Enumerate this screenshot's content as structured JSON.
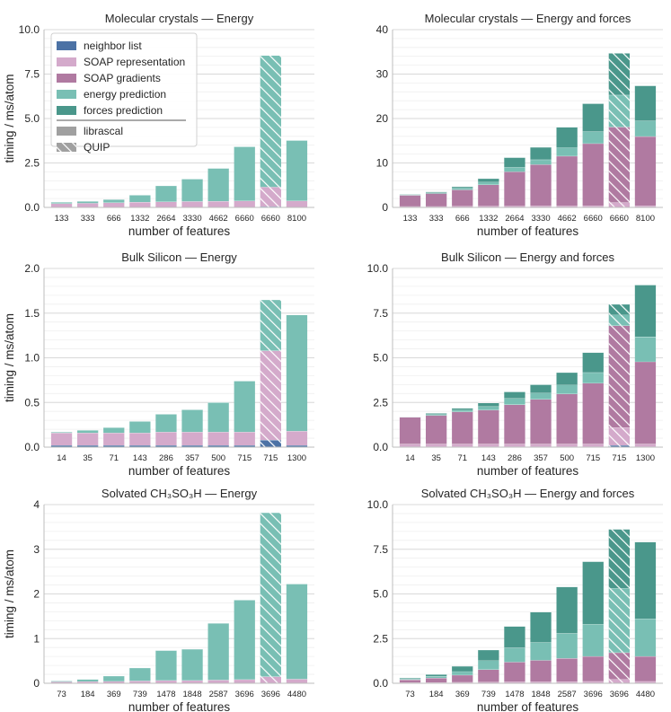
{
  "colors": {
    "neighbor": "#4c72a5",
    "soap_rep": "#d4aacb",
    "soap_grad": "#b07aa1",
    "energy": "#79bfb4",
    "forces": "#4a978b",
    "grid": "#e6e6e6",
    "legend_grey": "#a0a0a0"
  },
  "legend": {
    "items": [
      {
        "label": "neighbor list",
        "color": "#4c72a5"
      },
      {
        "label": "SOAP representation",
        "color": "#d4aacb"
      },
      {
        "label": "SOAP gradients",
        "color": "#b07aa1"
      },
      {
        "label": "energy prediction",
        "color": "#79bfb4"
      },
      {
        "label": "forces prediction",
        "color": "#4a978b"
      }
    ],
    "impl": [
      {
        "label": "librascal",
        "hatched": false
      },
      {
        "label": "QUIP",
        "hatched": true
      }
    ]
  },
  "chart_data": [
    {
      "type": "bar",
      "stacked": true,
      "title": "Molecular crystals — Energy",
      "xlabel": "number of features",
      "ylabel": "timing / ms/atom",
      "ylim": [
        0,
        10
      ],
      "yticks": [
        "0.0",
        "2.5",
        "5.0",
        "7.5",
        "10.0"
      ],
      "yticks_values": [
        0,
        2.5,
        5,
        7.5,
        10
      ],
      "categories": [
        "133",
        "333",
        "666",
        "1332",
        "2664",
        "3330",
        "4662",
        "6660",
        "6660",
        "8100"
      ],
      "hatched": [
        false,
        false,
        false,
        false,
        false,
        false,
        false,
        false,
        true,
        false
      ],
      "series": [
        {
          "name": "neighbor list",
          "values": [
            0.02,
            0.02,
            0.02,
            0.02,
            0.02,
            0.02,
            0.02,
            0.02,
            0.05,
            0.02
          ]
        },
        {
          "name": "SOAP representation",
          "values": [
            0.2,
            0.22,
            0.25,
            0.28,
            0.3,
            0.32,
            0.33,
            0.35,
            1.1,
            0.35
          ]
        },
        {
          "name": "SOAP gradients",
          "values": [
            0,
            0,
            0,
            0,
            0,
            0,
            0,
            0,
            0,
            0
          ]
        },
        {
          "name": "energy prediction",
          "values": [
            0.08,
            0.11,
            0.18,
            0.4,
            0.9,
            1.26,
            1.85,
            3.05,
            7.4,
            3.4
          ]
        },
        {
          "name": "forces prediction",
          "values": [
            0,
            0,
            0,
            0,
            0,
            0,
            0,
            0,
            0,
            0
          ]
        }
      ]
    },
    {
      "type": "bar",
      "stacked": true,
      "title": "Molecular crystals — Energy and forces",
      "xlabel": "number of features",
      "ylabel": "",
      "ylim": [
        0,
        40
      ],
      "yticks": [
        "0",
        "10",
        "20",
        "30",
        "40"
      ],
      "yticks_values": [
        0,
        10,
        20,
        30,
        40
      ],
      "categories": [
        "133",
        "333",
        "666",
        "1332",
        "2664",
        "3330",
        "4662",
        "6660",
        "6660",
        "8100"
      ],
      "hatched": [
        false,
        false,
        false,
        false,
        false,
        false,
        false,
        false,
        true,
        false
      ],
      "series": [
        {
          "name": "neighbor list",
          "values": [
            0.03,
            0.03,
            0.03,
            0.03,
            0.03,
            0.03,
            0.03,
            0.03,
            0.1,
            0.03
          ]
        },
        {
          "name": "SOAP representation",
          "values": [
            0.2,
            0.2,
            0.25,
            0.28,
            0.3,
            0.32,
            0.33,
            0.35,
            1.0,
            0.35
          ]
        },
        {
          "name": "SOAP gradients",
          "values": [
            2.5,
            2.9,
            3.7,
            4.8,
            7.7,
            9.3,
            11.2,
            14.0,
            17.0,
            15.6
          ]
        },
        {
          "name": "energy prediction",
          "values": [
            0.1,
            0.2,
            0.4,
            0.6,
            1.0,
            1.1,
            1.9,
            2.7,
            7.2,
            3.5
          ]
        },
        {
          "name": "forces prediction",
          "values": [
            0.1,
            0.2,
            0.3,
            0.8,
            2.2,
            2.8,
            4.6,
            6.3,
            9.4,
            7.9
          ]
        }
      ]
    },
    {
      "type": "bar",
      "stacked": true,
      "title": "Bulk Silicon — Energy",
      "xlabel": "number of features",
      "ylabel": "timing / ms/atom",
      "ylim": [
        0,
        2
      ],
      "yticks": [
        "0.0",
        "0.5",
        "1.0",
        "1.5",
        "2.0"
      ],
      "yticks_values": [
        0,
        0.5,
        1,
        1.5,
        2
      ],
      "categories": [
        "14",
        "35",
        "71",
        "143",
        "286",
        "357",
        "500",
        "715",
        "715",
        "1300"
      ],
      "hatched": [
        false,
        false,
        false,
        false,
        false,
        false,
        false,
        false,
        true,
        false
      ],
      "series": [
        {
          "name": "neighbor list",
          "values": [
            0.02,
            0.02,
            0.02,
            0.02,
            0.02,
            0.02,
            0.02,
            0.02,
            0.08,
            0.02
          ]
        },
        {
          "name": "SOAP representation",
          "values": [
            0.14,
            0.14,
            0.14,
            0.14,
            0.15,
            0.15,
            0.15,
            0.15,
            1.0,
            0.16
          ]
        },
        {
          "name": "SOAP gradients",
          "values": [
            0,
            0,
            0,
            0,
            0,
            0,
            0,
            0,
            0,
            0
          ]
        },
        {
          "name": "energy prediction",
          "values": [
            0.01,
            0.03,
            0.06,
            0.13,
            0.2,
            0.25,
            0.33,
            0.57,
            0.57,
            1.3
          ]
        },
        {
          "name": "forces prediction",
          "values": [
            0,
            0,
            0,
            0,
            0,
            0,
            0,
            0,
            0,
            0
          ]
        }
      ]
    },
    {
      "type": "bar",
      "stacked": true,
      "title": "Bulk Silicon — Energy and forces",
      "xlabel": "number of features",
      "ylabel": "",
      "ylim": [
        0,
        10
      ],
      "yticks": [
        "0.0",
        "2.5",
        "5.0",
        "7.5",
        "10.0"
      ],
      "yticks_values": [
        0,
        2.5,
        5,
        7.5,
        10
      ],
      "categories": [
        "14",
        "35",
        "71",
        "143",
        "286",
        "357",
        "500",
        "715",
        "715",
        "1300"
      ],
      "hatched": [
        false,
        false,
        false,
        false,
        false,
        false,
        false,
        false,
        true,
        false
      ],
      "series": [
        {
          "name": "neighbor list",
          "values": [
            0.03,
            0.03,
            0.03,
            0.03,
            0.03,
            0.03,
            0.03,
            0.03,
            0.1,
            0.03
          ]
        },
        {
          "name": "SOAP representation",
          "values": [
            0.15,
            0.15,
            0.15,
            0.15,
            0.15,
            0.15,
            0.15,
            0.15,
            1.0,
            0.15
          ]
        },
        {
          "name": "SOAP gradients",
          "values": [
            1.5,
            1.6,
            1.8,
            1.9,
            2.2,
            2.5,
            2.8,
            3.4,
            5.7,
            4.6
          ]
        },
        {
          "name": "energy prediction",
          "values": [
            0.02,
            0.06,
            0.1,
            0.2,
            0.35,
            0.35,
            0.5,
            0.6,
            0.6,
            1.4
          ]
        },
        {
          "name": "forces prediction",
          "values": [
            0,
            0.06,
            0.1,
            0.2,
            0.37,
            0.47,
            0.7,
            1.12,
            0.6,
            2.9
          ]
        }
      ]
    },
    {
      "type": "bar",
      "stacked": true,
      "title": "Solvated CH₃SO₃H — Energy",
      "xlabel": "number of features",
      "ylabel": "timing / ms/atom",
      "ylim": [
        0,
        4
      ],
      "yticks": [
        "0",
        "1",
        "2",
        "3",
        "4"
      ],
      "yticks_values": [
        0,
        1,
        2,
        3,
        4
      ],
      "categories": [
        "73",
        "184",
        "369",
        "739",
        "1478",
        "1848",
        "2587",
        "3696",
        "3696",
        "4480"
      ],
      "hatched": [
        false,
        false,
        false,
        false,
        false,
        false,
        false,
        false,
        true,
        false
      ],
      "series": [
        {
          "name": "neighbor list",
          "values": [
            0.005,
            0.005,
            0.005,
            0.005,
            0.005,
            0.005,
            0.005,
            0.005,
            0.01,
            0.005
          ]
        },
        {
          "name": "SOAP representation",
          "values": [
            0.03,
            0.035,
            0.04,
            0.05,
            0.06,
            0.06,
            0.07,
            0.08,
            0.14,
            0.09
          ]
        },
        {
          "name": "SOAP gradients",
          "values": [
            0,
            0,
            0,
            0,
            0,
            0,
            0,
            0,
            0,
            0
          ]
        },
        {
          "name": "energy prediction",
          "values": [
            0.02,
            0.05,
            0.12,
            0.29,
            0.67,
            0.7,
            1.27,
            1.78,
            3.67,
            2.13
          ]
        },
        {
          "name": "forces prediction",
          "values": [
            0,
            0,
            0,
            0,
            0,
            0,
            0,
            0,
            0,
            0
          ]
        }
      ]
    },
    {
      "type": "bar",
      "stacked": true,
      "title": "Solvated CH₃SO₃H — Energy and forces",
      "xlabel": "number of features",
      "ylabel": "",
      "ylim": [
        0,
        10
      ],
      "yticks": [
        "0.0",
        "2.5",
        "5.0",
        "7.5",
        "10.0"
      ],
      "yticks_values": [
        0,
        2.5,
        5,
        7.5,
        10
      ],
      "categories": [
        "73",
        "184",
        "369",
        "739",
        "1478",
        "1848",
        "2587",
        "3696",
        "3696",
        "4480"
      ],
      "hatched": [
        false,
        false,
        false,
        false,
        false,
        false,
        false,
        false,
        true,
        false
      ],
      "series": [
        {
          "name": "neighbor list",
          "values": [
            0.01,
            0.01,
            0.01,
            0.01,
            0.01,
            0.01,
            0.01,
            0.01,
            0.02,
            0.01
          ]
        },
        {
          "name": "SOAP representation",
          "values": [
            0.03,
            0.04,
            0.05,
            0.06,
            0.08,
            0.08,
            0.09,
            0.1,
            0.2,
            0.1
          ]
        },
        {
          "name": "SOAP gradients",
          "values": [
            0.16,
            0.25,
            0.4,
            0.7,
            1.1,
            1.2,
            1.3,
            1.4,
            1.5,
            1.4
          ]
        },
        {
          "name": "energy prediction",
          "values": [
            0.05,
            0.1,
            0.2,
            0.5,
            0.8,
            1.0,
            1.4,
            1.8,
            3.6,
            2.1
          ]
        },
        {
          "name": "forces prediction",
          "values": [
            0.05,
            0.1,
            0.3,
            0.6,
            1.2,
            1.7,
            2.6,
            3.5,
            3.3,
            4.3
          ]
        }
      ]
    }
  ]
}
